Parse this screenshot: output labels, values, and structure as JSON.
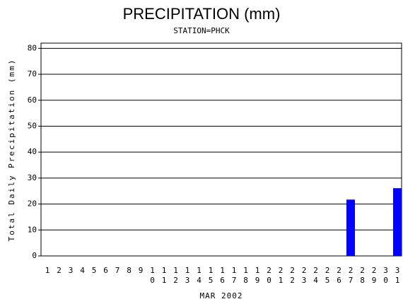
{
  "chart_data": {
    "type": "bar",
    "title": "PRECIPITATION (mm)",
    "subtitle": "STATION=PHCK",
    "y_label": "Total Daily Precipitation (mm)",
    "x_label": "MAR 2002",
    "categories": [
      "1",
      "2",
      "3",
      "4",
      "5",
      "6",
      "7",
      "8",
      "9",
      "10",
      "11",
      "12",
      "13",
      "14",
      "15",
      "16",
      "17",
      "18",
      "19",
      "20",
      "21",
      "22",
      "23",
      "24",
      "25",
      "26",
      "27",
      "28",
      "29",
      "30",
      "31"
    ],
    "values": [
      0,
      0,
      0,
      0,
      0,
      0,
      0,
      0,
      0,
      0,
      0,
      0,
      0,
      0,
      0,
      0,
      0,
      0,
      0,
      0,
      0,
      0,
      0,
      0,
      0,
      0,
      21.7,
      0,
      0,
      0,
      26.1
    ],
    "color": "#0000ff",
    "ylim": [
      0,
      82
    ],
    "yticks": [
      0,
      10,
      20,
      30,
      40,
      50,
      60,
      70,
      80
    ],
    "grid": true
  }
}
